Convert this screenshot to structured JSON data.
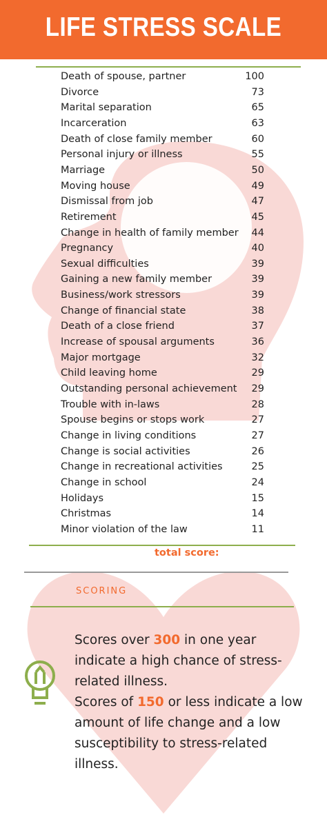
{
  "header": {
    "title": "LIFE STRESS SCALE"
  },
  "table": {
    "rows": [
      [
        "Death of spouse, partner",
        100
      ],
      [
        "Divorce",
        73
      ],
      [
        "Marital separation",
        65
      ],
      [
        "Incarceration",
        63
      ],
      [
        "Death of close family member",
        60
      ],
      [
        "Personal injury or illness",
        55
      ],
      [
        "Marriage",
        50
      ],
      [
        "Moving house",
        49
      ],
      [
        "Dismissal from job",
        47
      ],
      [
        "Retirement",
        45
      ],
      [
        "Change in health of family member",
        44
      ],
      [
        "Pregnancy",
        40
      ],
      [
        "Sexual difficulties",
        39
      ],
      [
        "Gaining a new family member",
        39
      ],
      [
        "Business/work stressors",
        39
      ],
      [
        "Change of financial state",
        38
      ],
      [
        "Death of a close friend",
        37
      ],
      [
        "Increase of spousal arguments",
        36
      ],
      [
        "Major mortgage",
        32
      ],
      [
        "Child leaving home",
        29
      ],
      [
        "Outstanding personal achievement",
        29
      ],
      [
        "Trouble with in-laws",
        28
      ],
      [
        "Spouse begins or stops work",
        27
      ],
      [
        "Change in living conditions",
        27
      ],
      [
        "Change is social activities",
        26
      ],
      [
        "Change in recreational activities",
        25
      ],
      [
        "Change in school",
        24
      ],
      [
        "Holidays",
        15
      ],
      [
        "Christmas",
        14
      ],
      [
        "Minor violation of the law",
        11
      ]
    ],
    "total_label": "total score:"
  },
  "scoring": {
    "heading": "SCORING",
    "paragraphs": [
      {
        "before": "Scores over",
        "highlight": 300,
        "after": "in one year indicate a high chance of stress-related illness."
      },
      {
        "before": "Scores of",
        "highlight": 150,
        "after": "or less indicate a low amount of life change and a low susceptibility to stress-related illness."
      }
    ]
  }
}
